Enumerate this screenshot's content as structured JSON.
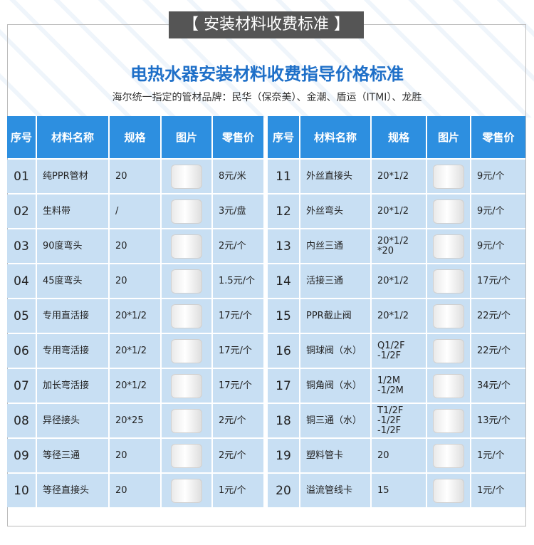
{
  "banner": "【 安装材料收费标准 】",
  "title": "电热水器安装材料收费指导价格标准",
  "subtitle": "海尔统一指定的管材品牌：民华（保奈美）、金潮、盾运（ITMI）、龙胜",
  "tables": [
    {
      "header": [
        "序号",
        "材料名称",
        "规格",
        "图片",
        "零售价"
      ],
      "rows": [
        [
          "01",
          "纯PPR管材",
          "20",
          "8元/米"
        ],
        [
          "02",
          "生料带",
          "/",
          "3元/盘"
        ],
        [
          "03",
          "90度弯头",
          "20",
          "2元/个"
        ],
        [
          "04",
          "45度弯头",
          "20",
          "1.5元/个"
        ],
        [
          "05",
          "专用直活接",
          "20*1/2",
          "17元/个"
        ],
        [
          "06",
          "专用弯活接",
          "20*1/2",
          "17元/个"
        ],
        [
          "07",
          "加长弯活接",
          "20*1/2",
          "17元/个"
        ],
        [
          "08",
          "异径接头",
          "20*25",
          "2元/个"
        ],
        [
          "09",
          "等径三通",
          "20",
          "2元/个"
        ],
        [
          "10",
          "等径直接头",
          "20",
          "1元/个"
        ]
      ]
    },
    {
      "header": [
        "序号",
        "材料名称",
        "规格",
        "图片",
        "零售价"
      ],
      "rows": [
        [
          "11",
          "外丝直接头",
          "20*1/2",
          "9元/个"
        ],
        [
          "12",
          "外丝弯头",
          "20*1/2",
          "9元/个"
        ],
        [
          "13",
          "内丝三通",
          "20*1/2\n*20",
          "9元/个"
        ],
        [
          "14",
          "活接三通",
          "20*1/2",
          "17元/个"
        ],
        [
          "15",
          "PPR截止阀",
          "20*1/2",
          "22元/个"
        ],
        [
          "16",
          "铜球阀（水）",
          "Q1/2F\n-1/2F",
          "22元/个"
        ],
        [
          "17",
          "铜角阀（水）",
          "1/2M\n-1/2M",
          "34元/个"
        ],
        [
          "18",
          "铜三通（水）",
          "T1/2F\n-1/2F\n-1/2F",
          "13元/个"
        ],
        [
          "19",
          "塑料管卡",
          "20",
          "1元/个"
        ],
        [
          "20",
          "溢流管线卡",
          "15",
          "1元/个"
        ]
      ]
    }
  ]
}
